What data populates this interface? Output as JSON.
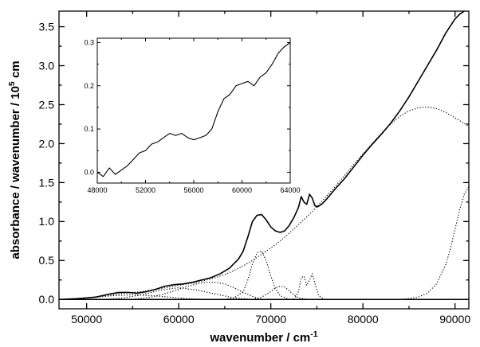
{
  "chart_data": [
    {
      "type": "line",
      "xlabel": "wavenumber / cm",
      "xlabel_sup": "-1",
      "ylabel": "absorbance / wavenumber / 10",
      "ylabel_sup": "5",
      "ylabel_tail": " cm",
      "xlim": [
        47000,
        91500
      ],
      "ylim": [
        -0.12,
        3.7
      ],
      "xticks": [
        50000,
        60000,
        70000,
        80000,
        90000
      ],
      "xtick_labels": [
        "50000",
        "60000",
        "70000",
        "80000",
        "90000"
      ],
      "yticks": [
        0.0,
        0.5,
        1.0,
        1.5,
        2.0,
        2.5,
        3.0,
        3.5
      ],
      "ytick_labels": [
        "0.0",
        "0.5",
        "1.0",
        "1.5",
        "2.0",
        "2.5",
        "3.0",
        "3.5"
      ],
      "grid": false,
      "series": [
        {
          "style": "solid",
          "color": "#000000",
          "x": [
            47000,
            49000,
            51000,
            52500,
            53500,
            54500,
            55500,
            56500,
            57500,
            58500,
            59500,
            60500,
            61500,
            62500,
            63500,
            64500,
            65500,
            66500,
            67000,
            67500,
            68000,
            68500,
            69000,
            69500,
            70000,
            70500,
            71000,
            71500,
            72000,
            72500,
            73000,
            73300,
            73600,
            73900,
            74200,
            74500,
            74800,
            75100,
            75500,
            76000,
            77000,
            78000,
            79000,
            80000,
            81000,
            82000,
            83000,
            84000,
            85000,
            86000,
            87000,
            88000,
            89000,
            90000,
            90500,
            91000,
            91500
          ],
          "y": [
            0.0,
            0.01,
            0.03,
            0.07,
            0.09,
            0.09,
            0.08,
            0.1,
            0.13,
            0.17,
            0.19,
            0.2,
            0.22,
            0.25,
            0.28,
            0.33,
            0.4,
            0.52,
            0.62,
            0.8,
            1.0,
            1.08,
            1.09,
            1.02,
            0.93,
            0.88,
            0.86,
            0.88,
            0.95,
            1.05,
            1.18,
            1.32,
            1.25,
            1.22,
            1.35,
            1.3,
            1.2,
            1.19,
            1.22,
            1.28,
            1.42,
            1.55,
            1.7,
            1.85,
            1.99,
            2.12,
            2.26,
            2.42,
            2.6,
            2.8,
            3.0,
            3.2,
            3.42,
            3.6,
            3.66,
            3.7,
            3.74
          ]
        },
        {
          "style": "dotted",
          "color": "#000000",
          "x": [
            47000,
            50000,
            53000,
            54000,
            55000,
            56000,
            57000,
            58000,
            59000,
            60000,
            61000,
            62000,
            63000,
            64000,
            65000,
            66000,
            67000,
            68000,
            69000,
            70000,
            71000,
            72000,
            73000,
            74000,
            75000,
            76000,
            77000,
            78000,
            79000,
            80000,
            81000,
            82000,
            83000,
            84000,
            85000,
            86000,
            87000,
            88000,
            89000,
            90000,
            91000,
            91500
          ],
          "y": [
            0.0,
            0.02,
            0.06,
            0.08,
            0.09,
            0.1,
            0.12,
            0.14,
            0.16,
            0.18,
            0.2,
            0.22,
            0.25,
            0.28,
            0.32,
            0.37,
            0.43,
            0.5,
            0.58,
            0.66,
            0.75,
            0.85,
            0.96,
            1.07,
            1.19,
            1.32,
            1.45,
            1.59,
            1.73,
            1.87,
            2.0,
            2.13,
            2.25,
            2.35,
            2.42,
            2.46,
            2.47,
            2.45,
            2.4,
            2.33,
            2.26,
            2.22
          ]
        },
        {
          "style": "dotted",
          "color": "#000000",
          "x": [
            84000,
            85000,
            86000,
            87000,
            88000,
            89000,
            89500,
            90000,
            90500,
            91000,
            91500
          ],
          "y": [
            0.0,
            0.01,
            0.03,
            0.08,
            0.2,
            0.45,
            0.65,
            0.9,
            1.15,
            1.35,
            1.45
          ]
        },
        {
          "style": "dotted",
          "color": "#000000",
          "x": [
            65000,
            66000,
            67000,
            67500,
            68000,
            68500,
            69000,
            69500,
            70000,
            70500,
            71000,
            72000
          ],
          "y": [
            0.0,
            0.02,
            0.1,
            0.25,
            0.45,
            0.6,
            0.62,
            0.5,
            0.3,
            0.14,
            0.05,
            0.0
          ]
        },
        {
          "style": "dotted",
          "color": "#000000",
          "x": [
            68000,
            69000,
            70000,
            70500,
            71000,
            71500,
            72000,
            72500,
            73000,
            74000
          ],
          "y": [
            0.0,
            0.03,
            0.1,
            0.15,
            0.17,
            0.16,
            0.11,
            0.06,
            0.02,
            0.0
          ]
        },
        {
          "style": "dotted",
          "color": "#000000",
          "x": [
            72500,
            73000,
            73300,
            73600,
            73900,
            74200,
            74500,
            74800,
            75200,
            75800
          ],
          "y": [
            0.0,
            0.1,
            0.28,
            0.3,
            0.18,
            0.25,
            0.33,
            0.2,
            0.05,
            0.0
          ]
        },
        {
          "style": "dotted",
          "color": "#000000",
          "x": [
            55000,
            57000,
            59000,
            61000,
            62000,
            63000,
            64000,
            65000,
            66000,
            67000,
            68000,
            69000
          ],
          "y": [
            0.0,
            0.03,
            0.09,
            0.17,
            0.2,
            0.22,
            0.22,
            0.2,
            0.15,
            0.09,
            0.04,
            0.0
          ]
        },
        {
          "style": "dotted",
          "color": "#000000",
          "x": [
            52000,
            54000,
            56000,
            58000,
            60000,
            62000,
            64000,
            66000,
            68000
          ],
          "y": [
            0.0,
            0.02,
            0.06,
            0.12,
            0.15,
            0.12,
            0.07,
            0.02,
            0.0
          ]
        },
        {
          "style": "dotted",
          "color": "#000000",
          "x": [
            47000,
            49000,
            51000,
            53000,
            55000,
            57000,
            59000,
            61000,
            63000
          ],
          "y": [
            0.0,
            0.01,
            0.03,
            0.05,
            0.06,
            0.05,
            0.03,
            0.01,
            0.0
          ]
        },
        {
          "style": "solid",
          "color": "#000000",
          "x": [
            47000,
            91500
          ],
          "y": [
            0.0,
            0.0
          ]
        }
      ]
    },
    {
      "type": "line",
      "inset": true,
      "xlabel": "",
      "ylabel": "",
      "xlim": [
        48000,
        64000
      ],
      "ylim": [
        -0.025,
        0.31
      ],
      "xticks": [
        48000,
        52000,
        56000,
        60000,
        64000
      ],
      "xtick_labels": [
        "48000",
        "52000",
        "56000",
        "60000",
        "64000"
      ],
      "yticks": [
        0.0,
        0.1,
        0.2,
        0.3
      ],
      "ytick_labels": [
        "0.0",
        "0.1",
        "0.2",
        "0.3"
      ],
      "grid": false,
      "series": [
        {
          "style": "solid",
          "color": "#000000",
          "x": [
            48000,
            48500,
            49000,
            49500,
            50000,
            50500,
            51000,
            51500,
            52000,
            52500,
            53000,
            53500,
            54000,
            54500,
            55000,
            55500,
            56000,
            56500,
            57000,
            57500,
            58000,
            58500,
            59000,
            59500,
            60000,
            60500,
            61000,
            61500,
            62000,
            62500,
            63000,
            63500,
            64000
          ],
          "y": [
            0.0,
            -0.01,
            0.01,
            -0.005,
            0.005,
            0.015,
            0.03,
            0.045,
            0.05,
            0.065,
            0.07,
            0.08,
            0.09,
            0.085,
            0.09,
            0.08,
            0.075,
            0.08,
            0.085,
            0.1,
            0.14,
            0.17,
            0.18,
            0.2,
            0.205,
            0.21,
            0.2,
            0.22,
            0.23,
            0.25,
            0.275,
            0.29,
            0.3
          ]
        }
      ]
    }
  ]
}
